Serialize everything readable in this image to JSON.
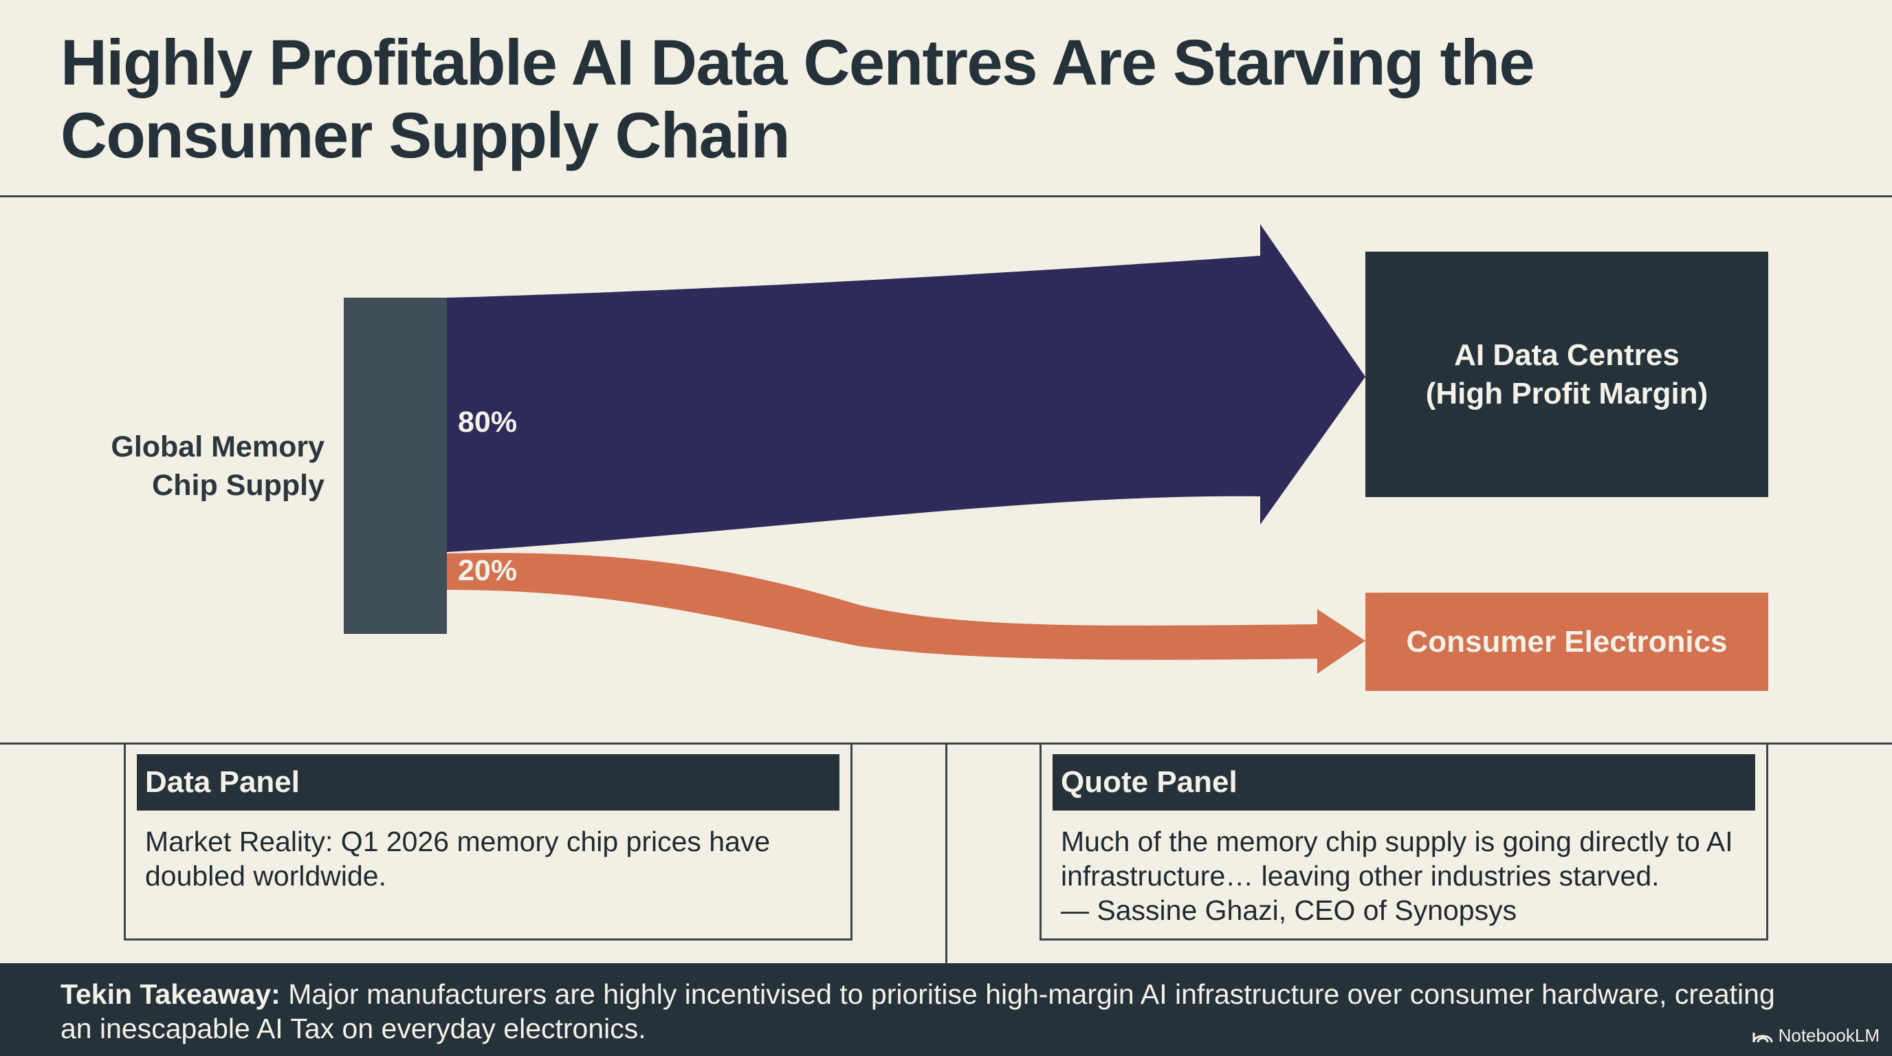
{
  "title": {
    "line1": "Highly Profitable AI Data Centres Are Starving the",
    "line2": "Consumer Supply Chain"
  },
  "chart_data": {
    "type": "sankey",
    "source": {
      "label_line1": "Global Memory",
      "label_line2": "Chip Supply"
    },
    "flows": [
      {
        "percent_label": "80%",
        "value": 80,
        "target_line1": "AI Data Centres",
        "target_line2": "(High Profit Margin)",
        "color": "#2e2a5a"
      },
      {
        "percent_label": "20%",
        "value": 20,
        "target_line1": "Consumer Electronics",
        "target_line2": "",
        "color": "#d4714f"
      }
    ]
  },
  "colors": {
    "background": "#f2efe4",
    "dark": "#263239",
    "source_bar": "#3f4e57",
    "purple_flow": "#2e2a5a",
    "orange_flow": "#d4714f"
  },
  "panels": {
    "data": {
      "heading": "Data Panel",
      "line1": "Market Reality: Q1 2026 memory chip prices have",
      "line2": "doubled worldwide."
    },
    "quote": {
      "heading": "Quote Panel",
      "line1": "Much of the memory chip supply is going directly to AI",
      "line2": "infrastructure… leaving other industries starved.",
      "line3": "— Sassine Ghazi, CEO of Synopsys"
    }
  },
  "footer": {
    "label": "Tekin Takeaway:",
    "text": " Major manufacturers are highly incentivised to prioritise high-margin AI infrastructure over consumer hardware, creating an inescapable AI Tax on everyday electronics.",
    "brand": "NotebookLM",
    "brand_icon": "notebooklm-logo-icon"
  }
}
